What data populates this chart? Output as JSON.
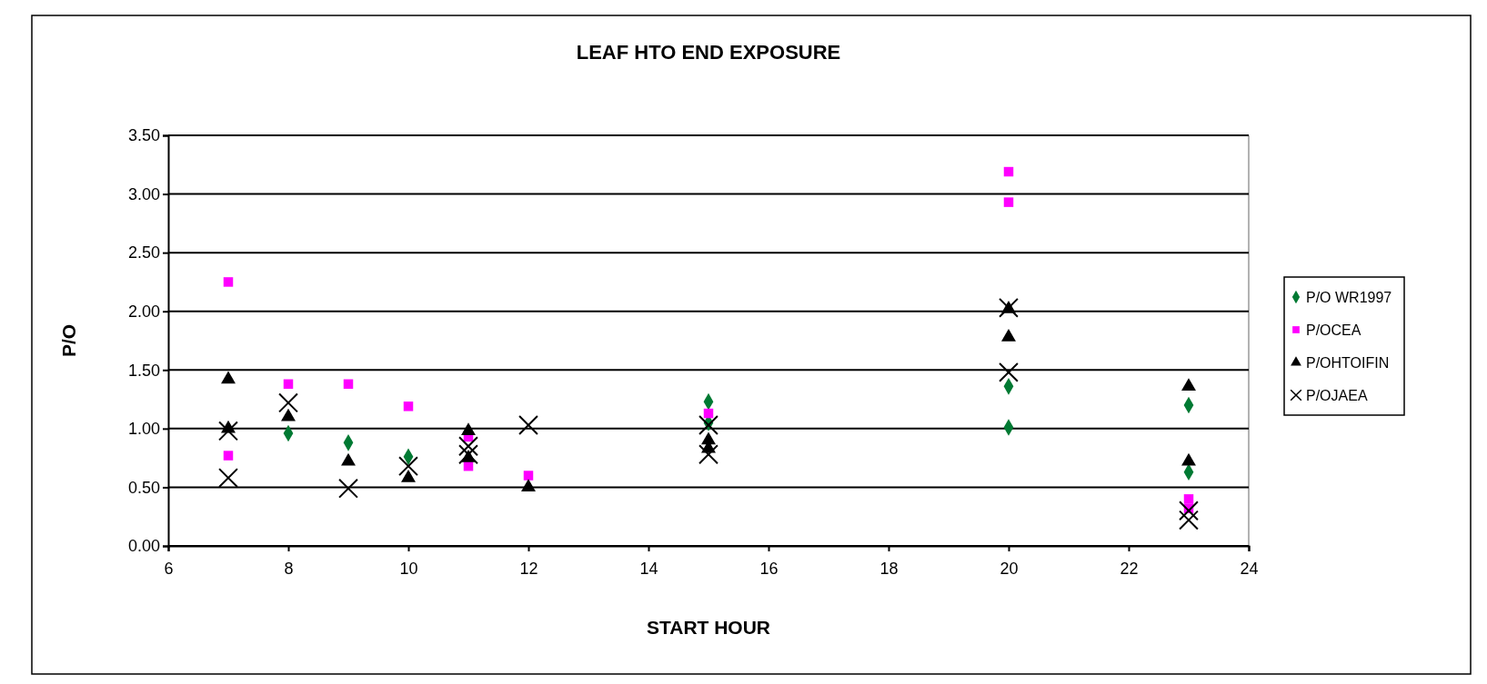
{
  "chart_data": {
    "type": "scatter",
    "title": "LEAF HTO END EXPOSURE",
    "xlabel": "START HOUR",
    "ylabel": "P/O",
    "xlim": [
      6,
      24
    ],
    "xticks": [
      6,
      8,
      10,
      12,
      14,
      16,
      18,
      20,
      22,
      24
    ],
    "ylim": [
      0,
      3.5
    ],
    "yticks": [
      {
        "value": 0,
        "label": "0.00"
      },
      {
        "value": 0.5,
        "label": "0.50"
      },
      {
        "value": 1,
        "label": "1.00"
      },
      {
        "value": 1.5,
        "label": "1.50"
      },
      {
        "value": 2,
        "label": "2.00"
      },
      {
        "value": 2.5,
        "label": "2.50"
      },
      {
        "value": 3,
        "label": "3.00"
      },
      {
        "value": 3.5,
        "label": "3.50"
      }
    ],
    "grid": "y",
    "legend": "right",
    "series": [
      {
        "name": "P/O WR1997",
        "color": "#007a33",
        "marker": "diamond",
        "x": [
          8,
          9,
          10,
          15,
          15,
          20,
          20,
          23,
          23
        ],
        "values": [
          0.96,
          0.88,
          0.76,
          1.23,
          1.05,
          1.36,
          1.01,
          1.2,
          0.63
        ]
      },
      {
        "name": "P/OCEA",
        "color": "#ff00ff",
        "marker": "square",
        "x": [
          7,
          7,
          8,
          9,
          10,
          11,
          11,
          12,
          15,
          20,
          20,
          23,
          23
        ],
        "values": [
          2.25,
          0.77,
          1.38,
          1.38,
          1.19,
          0.68,
          0.93,
          0.6,
          1.13,
          3.19,
          2.93,
          0.4,
          0.32
        ]
      },
      {
        "name": "P/OHTOIFIN",
        "color": "#000000",
        "marker": "triangle",
        "x": [
          7,
          7,
          8,
          9,
          10,
          11,
          11,
          12,
          15,
          15,
          20,
          20,
          23,
          23
        ],
        "values": [
          1.42,
          1.0,
          1.1,
          0.72,
          0.58,
          0.98,
          0.75,
          0.5,
          0.9,
          0.83,
          2.02,
          1.78,
          1.36,
          0.72
        ]
      },
      {
        "name": "P/OJAEA",
        "color": "#000000",
        "marker": "cross",
        "x": [
          7,
          7,
          8,
          9,
          10,
          11,
          11,
          12,
          15,
          15,
          20,
          20,
          23,
          23
        ],
        "values": [
          0.98,
          0.58,
          1.22,
          0.49,
          0.68,
          0.85,
          0.78,
          1.03,
          1.03,
          0.78,
          2.03,
          1.48,
          0.3,
          0.22
        ]
      }
    ]
  }
}
